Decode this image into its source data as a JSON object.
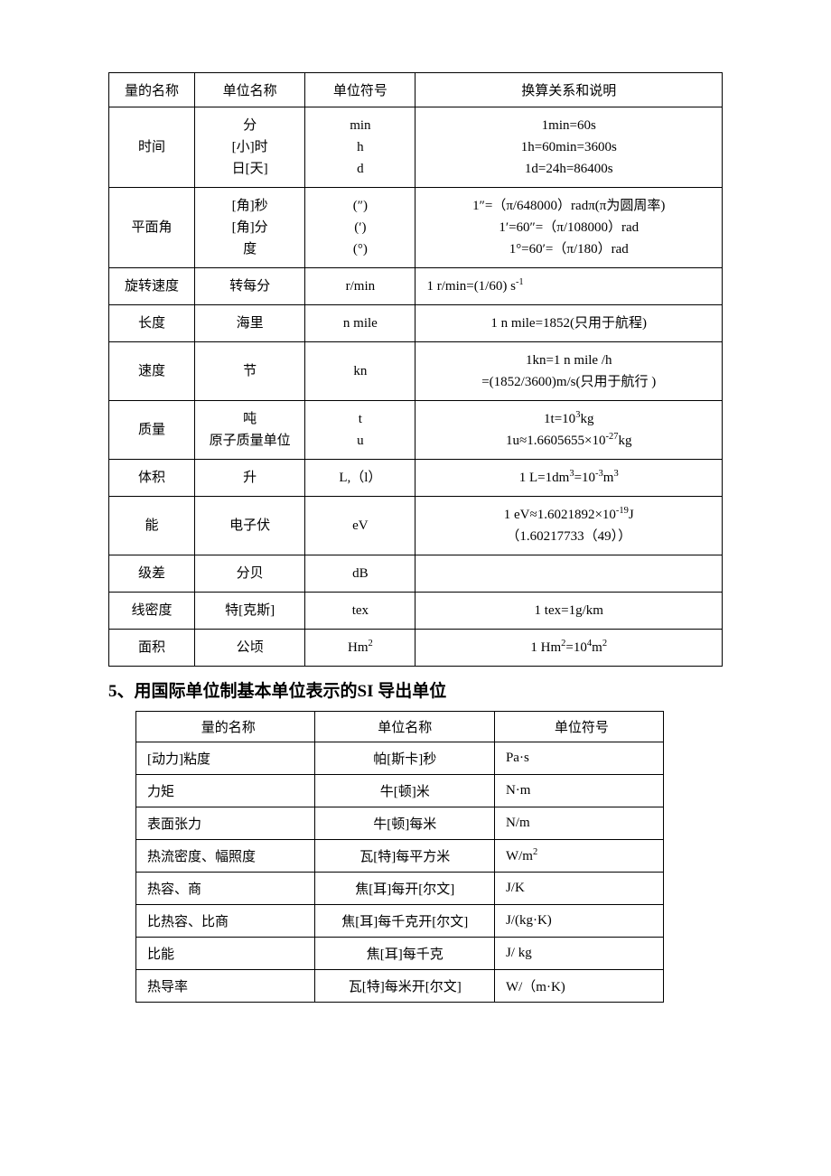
{
  "table1": {
    "headers": [
      "量的名称",
      "单位名称",
      "单位符号",
      "换算关系和说明"
    ],
    "rows": [
      {
        "name": "时间",
        "unit": "分<br>[小]时<br>日[天]",
        "symbol": "min<br>h<br>d",
        "desc": "1min=60s<br>1h=60min=3600s<br>1d=24h=86400s"
      },
      {
        "name": "平面角",
        "unit": "[角]秒<br>[角]分<br>度",
        "symbol": "(″)<br>(′)<br>(°)",
        "desc": "1″=（π/648000）radπ(π为圆周率)<br>1′=60″=（π/108000）rad<br>1°=60′=（π/180）rad"
      },
      {
        "name": "旋转速度",
        "unit": "转每分",
        "symbol": "r/min",
        "desc": "1 r/min=(1/60) s<sup>-1</sup>",
        "descLeft": true
      },
      {
        "name": "长度",
        "unit": "海里",
        "symbol": "n mile",
        "desc": "1 n mile=1852(只用于航程)"
      },
      {
        "name": "速度",
        "unit": "节",
        "symbol": "kn",
        "desc": "1kn=1 n mile /h<br>=(1852/3600)m/s(只用于航行 )"
      },
      {
        "name": "质量",
        "unit": "吨<br>原子质量单位",
        "symbol": "t<br>u",
        "desc": "1t=10<sup>3</sup>kg<br>1u≈1.6605655×10<sup>-27</sup>kg"
      },
      {
        "name": "体积",
        "unit": "升",
        "symbol": "L,（l）",
        "desc": "1 L=1dm<sup>3</sup>=10<sup>-3</sup>m<sup>3</sup>"
      },
      {
        "name": "能",
        "unit": "电子伏",
        "symbol": "eV",
        "desc": "1 eV≈1.6021892×10<sup>-19</sup>J<br>（1.60217733（49））"
      },
      {
        "name": "级差",
        "unit": "分贝",
        "symbol": "dB",
        "desc": ""
      },
      {
        "name": "线密度",
        "unit": "特[克斯]",
        "symbol": "tex",
        "desc": "1 tex=1g/km"
      },
      {
        "name": "面积",
        "unit": "公顷",
        "symbol": "Hm<sup>2</sup>",
        "desc": "1 Hm<sup>2</sup>=10<sup>4</sup>m<sup>2</sup>"
      }
    ]
  },
  "heading": "5、用国际单位制基本单位表示的SI 导出单位",
  "table2": {
    "headers": [
      "量的名称",
      "单位名称",
      "单位符号"
    ],
    "rows": [
      {
        "c1": "[动力]粘度",
        "c2": "帕[斯卡]秒",
        "c3": "Pa·s"
      },
      {
        "c1": "力矩",
        "c2": "牛[顿]米",
        "c3": "N·m"
      },
      {
        "c1": "表面张力",
        "c2": "牛[顿]每米",
        "c3": "N/m"
      },
      {
        "c1": "热流密度、幅照度",
        "c2": "瓦[特]每平方米",
        "c3": "W/m<sup>2</sup>"
      },
      {
        "c1": "热容、商",
        "c2": "焦[耳]每开[尔文]",
        "c3": "J/K"
      },
      {
        "c1": "比热容、比商",
        "c2": "焦[耳]每千克开[尔文]",
        "c3": "J/(kg·K)"
      },
      {
        "c1": "比能",
        "c2": "焦[耳]每千克",
        "c3": "J/ kg"
      },
      {
        "c1": "热导率",
        "c2": "瓦[特]每米开[尔文]",
        "c3": "W/（m·K)"
      }
    ]
  }
}
